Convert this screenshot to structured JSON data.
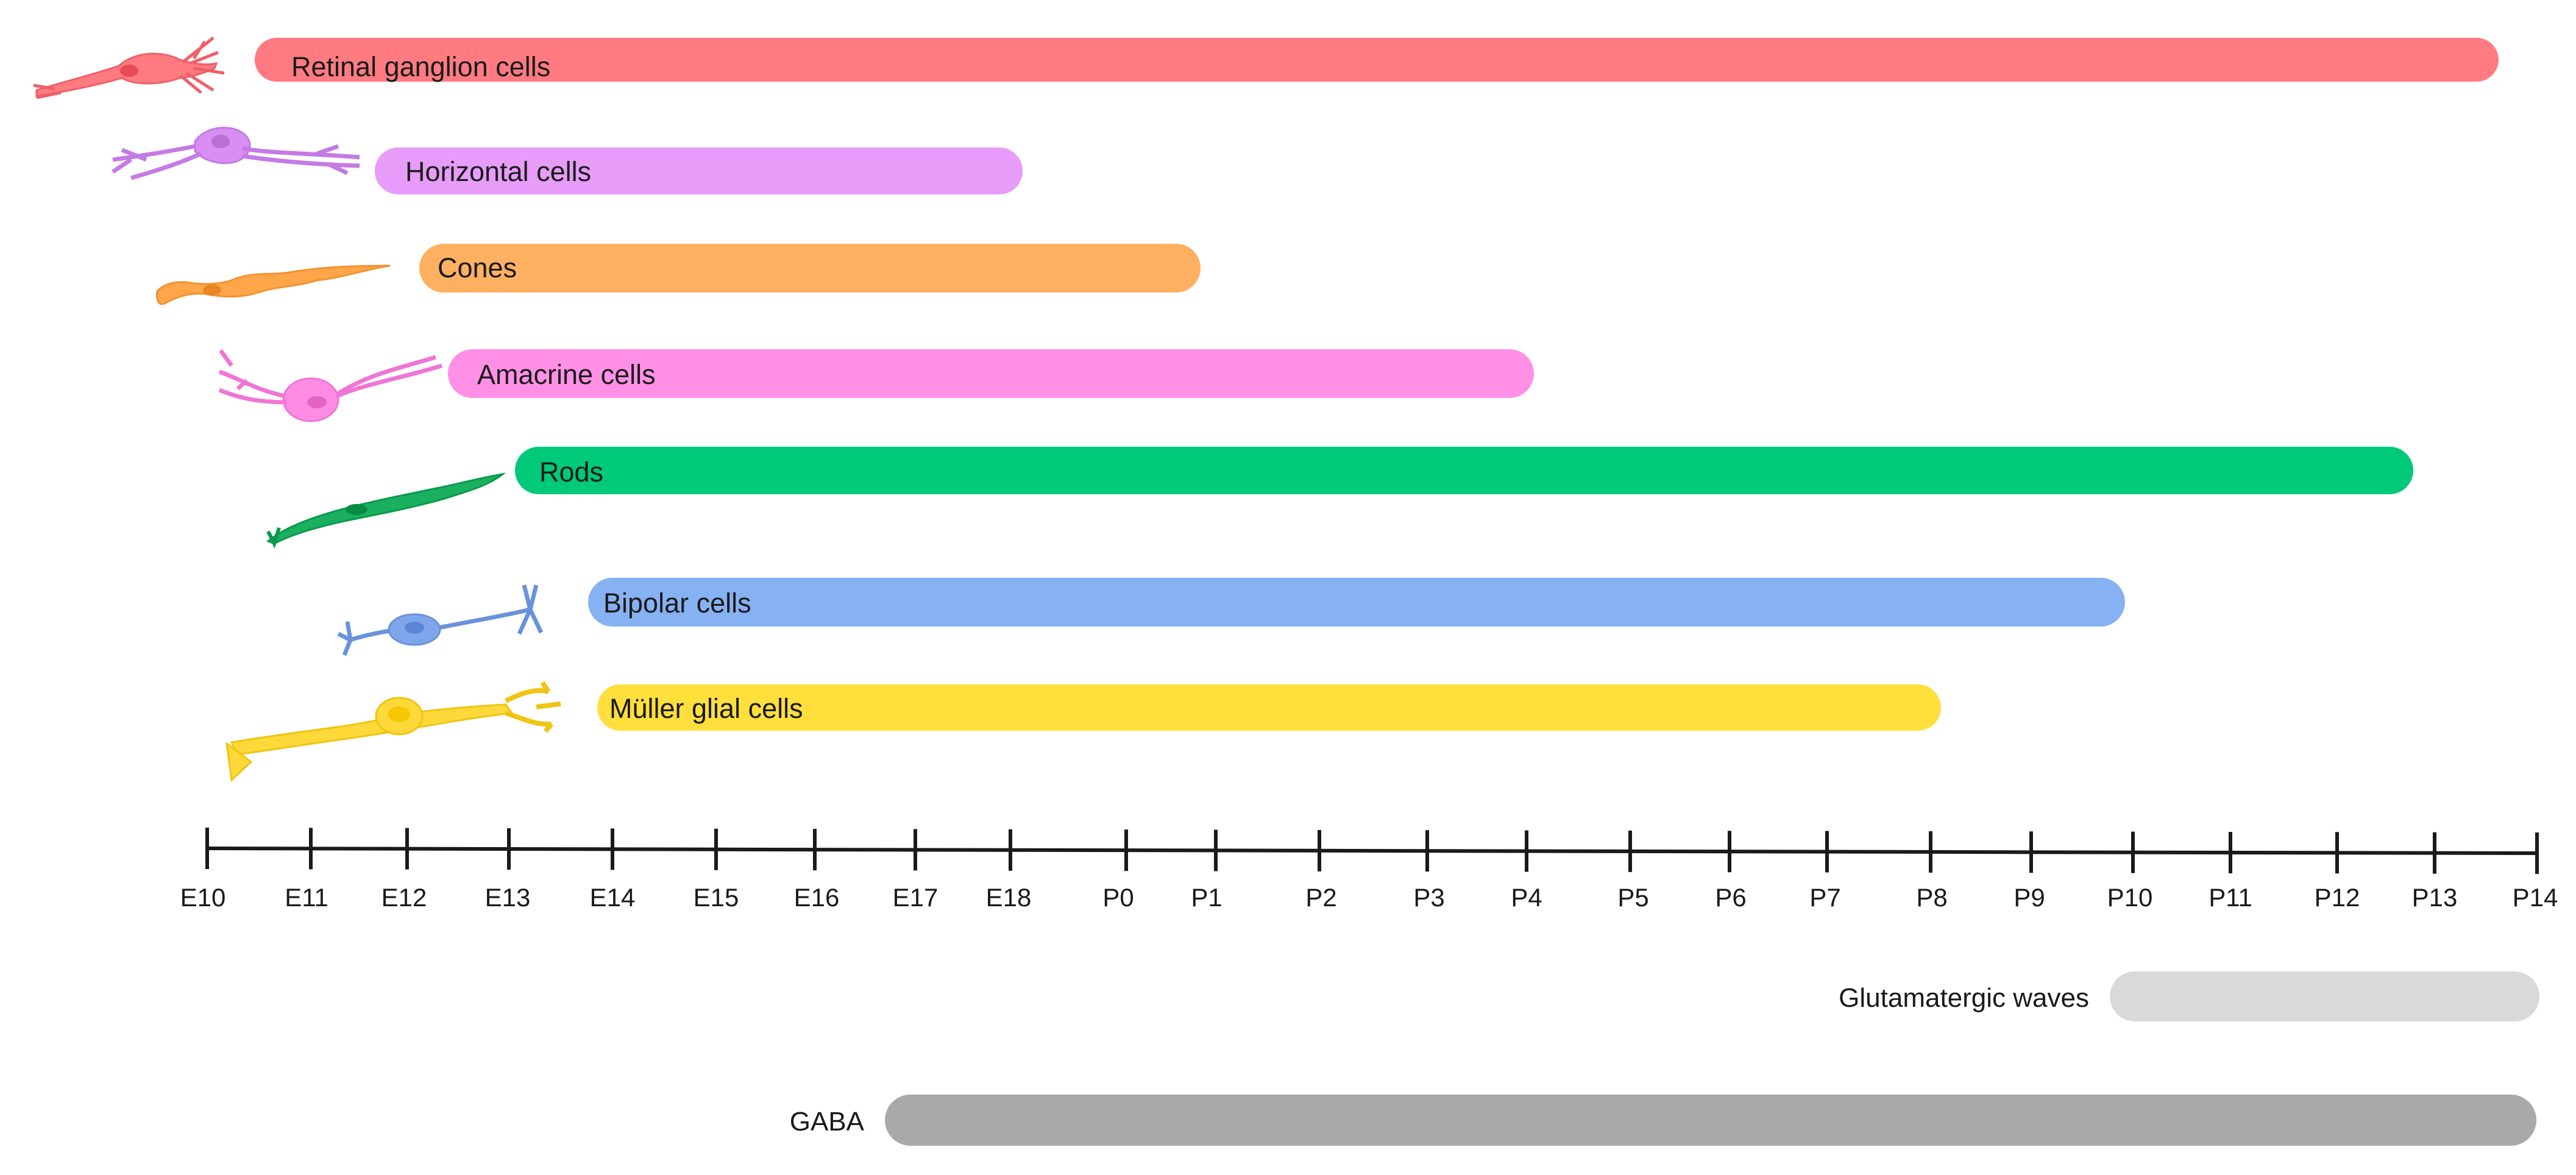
{
  "timeline": {
    "ticks": [
      "E10",
      "E11",
      "E12",
      "E13",
      "E14",
      "E15",
      "E16",
      "E17",
      "E18",
      "P0",
      "P1",
      "P2",
      "P3",
      "P4",
      "P5",
      "P6",
      "P7",
      "P8",
      "P9",
      "P10",
      "P11",
      "P12",
      "P13",
      "P14"
    ]
  },
  "cell_types": [
    {
      "label": "Retinal ganglion cells",
      "color": "#ff7b81",
      "icon": "retinal-ganglion-cell-icon"
    },
    {
      "label": "Horizontal cells",
      "color": "#e79cf9",
      "icon": "horizontal-cell-icon"
    },
    {
      "label": "Cones",
      "color": "#ffb060",
      "icon": "cone-cell-icon"
    },
    {
      "label": "Amacrine cells",
      "color": "#ff90e6",
      "icon": "amacrine-cell-icon"
    },
    {
      "label": "Rods",
      "color": "#00c97a",
      "icon": "rod-cell-icon"
    },
    {
      "label": "Bipolar cells",
      "color": "#86b1f2",
      "icon": "bipolar-cell-icon"
    },
    {
      "label": "Müller glial cells",
      "color": "#ffdf3c",
      "icon": "muller-glial-cell-icon"
    }
  ],
  "activity": [
    {
      "label": "Glutamatergic waves",
      "color": "#d9d9d9"
    },
    {
      "label": "GABA",
      "color": "#a9a9a9"
    }
  ]
}
